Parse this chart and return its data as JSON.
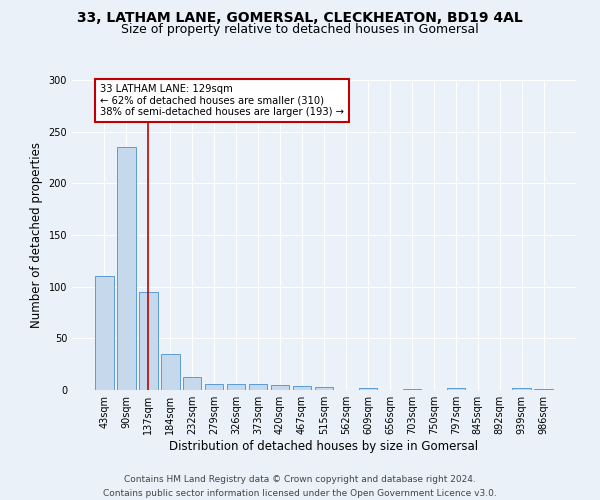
{
  "title1": "33, LATHAM LANE, GOMERSAL, CLECKHEATON, BD19 4AL",
  "title2": "Size of property relative to detached houses in Gomersal",
  "xlabel": "Distribution of detached houses by size in Gomersal",
  "ylabel": "Number of detached properties",
  "categories": [
    "43sqm",
    "90sqm",
    "137sqm",
    "184sqm",
    "232sqm",
    "279sqm",
    "326sqm",
    "373sqm",
    "420sqm",
    "467sqm",
    "515sqm",
    "562sqm",
    "609sqm",
    "656sqm",
    "703sqm",
    "750sqm",
    "797sqm",
    "845sqm",
    "892sqm",
    "939sqm",
    "986sqm"
  ],
  "values": [
    110,
    235,
    95,
    35,
    13,
    6,
    6,
    6,
    5,
    4,
    3,
    0,
    2,
    0,
    1,
    0,
    2,
    0,
    0,
    2,
    1
  ],
  "bar_color": "#c6d9ec",
  "bar_edge_color": "#5b9bd5",
  "highlight_index": 2,
  "highlight_color": "#c00000",
  "ylim": [
    0,
    300
  ],
  "yticks": [
    0,
    50,
    100,
    150,
    200,
    250,
    300
  ],
  "annotation_title": "33 LATHAM LANE: 129sqm",
  "annotation_line1": "← 62% of detached houses are smaller (310)",
  "annotation_line2": "38% of semi-detached houses are larger (193) →",
  "footer1": "Contains HM Land Registry data © Crown copyright and database right 2024.",
  "footer2": "Contains public sector information licensed under the Open Government Licence v3.0.",
  "background_color": "#eaf1f8",
  "plot_bg_color": "#eaf1f8",
  "grid_color": "#ffffff",
  "title_fontsize": 10,
  "subtitle_fontsize": 9,
  "axis_label_fontsize": 8.5,
  "tick_fontsize": 7,
  "footer_fontsize": 6.5
}
